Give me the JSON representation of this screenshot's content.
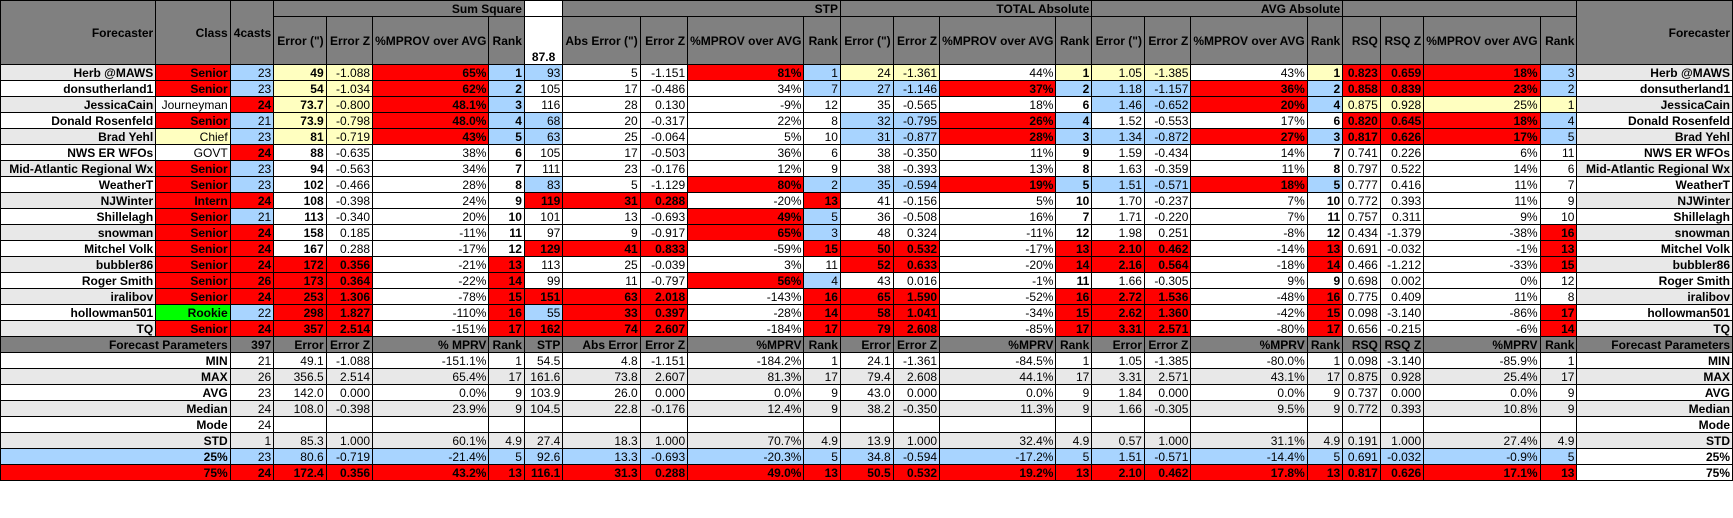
{
  "groups": {
    "sum_square": "Sum Square",
    "stp": "STP",
    "total_abs": "TOTAL Absolute",
    "avg_abs": "AVG Absolute"
  },
  "headers": {
    "forecaster": "Forecaster",
    "class": "Class",
    "casts": "4casts",
    "error_in": "Error (\")",
    "error_z": "Error Z",
    "improv": "%MPROV over AVG",
    "rank": "Rank",
    "stp_value": "87.8",
    "abs_error": "Abs Error (\")",
    "rsq": "RSQ",
    "rsq_z": "RSQ Z",
    "improv2": "%MPROV over AVG"
  },
  "rows": [
    {
      "name": "Herb @MAWS",
      "cls": "Senior",
      "n": "23",
      "ss": [
        "49",
        "-1.088",
        "65%",
        "1"
      ],
      "stp": [
        "93",
        "5",
        "-1.151",
        "81%",
        "1"
      ],
      "ta": [
        "24",
        "-1.361",
        "44%",
        "1"
      ],
      "aa": [
        "1.05",
        "-1.385",
        "43%",
        "1"
      ],
      "rsq": [
        "0.823",
        "0.659",
        "18%",
        "3"
      ]
    },
    {
      "name": "donsutherland1",
      "cls": "Senior",
      "n": "23",
      "ss": [
        "54",
        "-1.034",
        "62%",
        "2"
      ],
      "stp": [
        "105",
        "17",
        "-0.486",
        "34%",
        "7"
      ],
      "ta": [
        "27",
        "-1.146",
        "37%",
        "2"
      ],
      "aa": [
        "1.18",
        "-1.157",
        "36%",
        "2"
      ],
      "rsq": [
        "0.858",
        "0.839",
        "23%",
        "2"
      ]
    },
    {
      "name": "JessicaCain",
      "cls": "Journeyman",
      "n": "24",
      "ss": [
        "73.7",
        "-0.800",
        "48.1%",
        "3"
      ],
      "stp": [
        "116",
        "28",
        "0.130",
        "-9%",
        "12"
      ],
      "ta": [
        "35",
        "-0.565",
        "18%",
        "6"
      ],
      "aa": [
        "1.46",
        "-0.652",
        "20%",
        "4"
      ],
      "rsq": [
        "0.875",
        "0.928",
        "25%",
        "1"
      ]
    },
    {
      "name": "Donald Rosenfeld",
      "cls": "Senior",
      "n": "21",
      "ss": [
        "73.9",
        "-0.798",
        "48.0%",
        "4"
      ],
      "stp": [
        "68",
        "20",
        "-0.317",
        "22%",
        "8"
      ],
      "ta": [
        "32",
        "-0.795",
        "26%",
        "4"
      ],
      "aa": [
        "1.52",
        "-0.553",
        "17%",
        "6"
      ],
      "rsq": [
        "0.820",
        "0.645",
        "18%",
        "4"
      ]
    },
    {
      "name": "Brad Yehl",
      "cls": "Chief",
      "n": "23",
      "ss": [
        "81",
        "-0.719",
        "43%",
        "5"
      ],
      "stp": [
        "63",
        "25",
        "-0.064",
        "5%",
        "10"
      ],
      "ta": [
        "31",
        "-0.877",
        "28%",
        "3"
      ],
      "aa": [
        "1.34",
        "-0.872",
        "27%",
        "3"
      ],
      "rsq": [
        "0.817",
        "0.626",
        "17%",
        "5"
      ]
    },
    {
      "name": "NWS ER WFOs",
      "cls": "GOVT",
      "n": "24",
      "ss": [
        "88",
        "-0.635",
        "38%",
        "6"
      ],
      "stp": [
        "105",
        "17",
        "-0.503",
        "36%",
        "6"
      ],
      "ta": [
        "38",
        "-0.350",
        "11%",
        "9"
      ],
      "aa": [
        "1.59",
        "-0.434",
        "14%",
        "7"
      ],
      "rsq": [
        "0.741",
        "0.226",
        "6%",
        "11"
      ]
    },
    {
      "name": "Mid-Atlantic Regional Wx",
      "cls": "Senior",
      "n": "23",
      "ss": [
        "94",
        "-0.563",
        "34%",
        "7"
      ],
      "stp": [
        "111",
        "23",
        "-0.176",
        "12%",
        "9"
      ],
      "ta": [
        "38",
        "-0.393",
        "13%",
        "8"
      ],
      "aa": [
        "1.63",
        "-0.359",
        "11%",
        "8"
      ],
      "rsq": [
        "0.797",
        "0.522",
        "14%",
        "6"
      ]
    },
    {
      "name": "WeatherT",
      "cls": "Senior",
      "n": "23",
      "ss": [
        "102",
        "-0.466",
        "28%",
        "8"
      ],
      "stp": [
        "83",
        "5",
        "-1.129",
        "80%",
        "2"
      ],
      "ta": [
        "35",
        "-0.594",
        "19%",
        "5"
      ],
      "aa": [
        "1.51",
        "-0.571",
        "18%",
        "5"
      ],
      "rsq": [
        "0.777",
        "0.416",
        "11%",
        "7"
      ]
    },
    {
      "name": "NJWinter",
      "cls": "Intern",
      "n": "24",
      "ss": [
        "108",
        "-0.398",
        "24%",
        "9"
      ],
      "stp": [
        "119",
        "31",
        "0.288",
        "-20%",
        "13"
      ],
      "ta": [
        "41",
        "-0.156",
        "5%",
        "10"
      ],
      "aa": [
        "1.70",
        "-0.237",
        "7%",
        "10"
      ],
      "rsq": [
        "0.772",
        "0.393",
        "11%",
        "9"
      ]
    },
    {
      "name": "Shillelagh",
      "cls": "Senior",
      "n": "21",
      "ss": [
        "113",
        "-0.340",
        "20%",
        "10"
      ],
      "stp": [
        "101",
        "13",
        "-0.693",
        "49%",
        "5"
      ],
      "ta": [
        "36",
        "-0.508",
        "16%",
        "7"
      ],
      "aa": [
        "1.71",
        "-0.220",
        "7%",
        "11"
      ],
      "rsq": [
        "0.757",
        "0.311",
        "9%",
        "10"
      ]
    },
    {
      "name": "snowman",
      "cls": "Senior",
      "n": "24",
      "ss": [
        "158",
        "0.185",
        "-11%",
        "11"
      ],
      "stp": [
        "97",
        "9",
        "-0.917",
        "65%",
        "3"
      ],
      "ta": [
        "48",
        "0.324",
        "-11%",
        "12"
      ],
      "aa": [
        "1.98",
        "0.251",
        "-8%",
        "12"
      ],
      "rsq": [
        "0.434",
        "-1.379",
        "-38%",
        "16"
      ]
    },
    {
      "name": "Mitchel Volk",
      "cls": "Senior",
      "n": "24",
      "ss": [
        "167",
        "0.288",
        "-17%",
        "12"
      ],
      "stp": [
        "129",
        "41",
        "0.833",
        "-59%",
        "15"
      ],
      "ta": [
        "50",
        "0.532",
        "-17%",
        "13"
      ],
      "aa": [
        "2.10",
        "0.462",
        "-14%",
        "13"
      ],
      "rsq": [
        "0.691",
        "-0.032",
        "-1%",
        "13"
      ]
    },
    {
      "name": "bubbler86",
      "cls": "Senior",
      "n": "24",
      "ss": [
        "172",
        "0.356",
        "-21%",
        "13"
      ],
      "stp": [
        "113",
        "25",
        "-0.039",
        "3%",
        "11"
      ],
      "ta": [
        "52",
        "0.633",
        "-20%",
        "14"
      ],
      "aa": [
        "2.16",
        "0.564",
        "-18%",
        "14"
      ],
      "rsq": [
        "0.466",
        "-1.212",
        "-33%",
        "15"
      ]
    },
    {
      "name": "Roger Smith",
      "cls": "Senior",
      "n": "26",
      "ss": [
        "173",
        "0.364",
        "-22%",
        "14"
      ],
      "stp": [
        "99",
        "11",
        "-0.797",
        "56%",
        "4"
      ],
      "ta": [
        "43",
        "0.016",
        "-1%",
        "11"
      ],
      "aa": [
        "1.66",
        "-0.305",
        "9%",
        "9"
      ],
      "rsq": [
        "0.698",
        "0.002",
        "0%",
        "12"
      ]
    },
    {
      "name": "iralibov",
      "cls": "Senior",
      "n": "24",
      "ss": [
        "253",
        "1.306",
        "-78%",
        "15"
      ],
      "stp": [
        "151",
        "63",
        "2.018",
        "-143%",
        "16"
      ],
      "ta": [
        "65",
        "1.590",
        "-52%",
        "16"
      ],
      "aa": [
        "2.72",
        "1.536",
        "-48%",
        "16"
      ],
      "rsq": [
        "0.775",
        "0.409",
        "11%",
        "8"
      ]
    },
    {
      "name": "hollowman501",
      "cls": "Rookie",
      "n": "22",
      "ss": [
        "298",
        "1.827",
        "-110%",
        "16"
      ],
      "stp": [
        "55",
        "33",
        "0.397",
        "-28%",
        "14"
      ],
      "ta": [
        "58",
        "1.041",
        "-34%",
        "15"
      ],
      "aa": [
        "2.62",
        "1.360",
        "-42%",
        "15"
      ],
      "rsq": [
        "0.098",
        "-3.140",
        "-86%",
        "17"
      ]
    },
    {
      "name": "TQ",
      "cls": "Senior",
      "n": "24",
      "ss": [
        "357",
        "2.514",
        "-151%",
        "17"
      ],
      "stp": [
        "162",
        "74",
        "2.607",
        "-184%",
        "17"
      ],
      "ta": [
        "79",
        "2.608",
        "-85%",
        "17"
      ],
      "aa": [
        "3.31",
        "2.571",
        "-80%",
        "17"
      ],
      "rsq": [
        "0.656",
        "-0.215",
        "-6%",
        "14"
      ]
    }
  ],
  "params_header": {
    "label": "Forecast Parameters",
    "total": "397",
    "ss": [
      "Error",
      "Error Z",
      "% MPRV",
      "Rank"
    ],
    "stp": [
      "STP",
      "Abs Error",
      "Error Z",
      "%MPRV",
      "Rank"
    ],
    "ta": [
      "Error",
      "Error Z",
      "%MPRV",
      "Rank"
    ],
    "aa": [
      "Error",
      "Error Z",
      "%MPRV",
      "Rank"
    ],
    "rsq": [
      "RSQ",
      "RSQ Z",
      "%MPRV",
      "Rank"
    ]
  },
  "stats": [
    {
      "label": "MIN",
      "n": "21",
      "ss": [
        "49.1",
        "-1.088",
        "-151.1%",
        "1"
      ],
      "stp": [
        "54.5",
        "4.8",
        "-1.151",
        "-184.2%",
        "1"
      ],
      "ta": [
        "24.1",
        "-1.361",
        "-84.5%",
        "1"
      ],
      "aa": [
        "1.05",
        "-1.385",
        "-80.0%",
        "1"
      ],
      "rsq": [
        "0.098",
        "-3.140",
        "-85.9%",
        "1"
      ]
    },
    {
      "label": "MAX",
      "n": "26",
      "ss": [
        "356.5",
        "2.514",
        "65.4%",
        "17"
      ],
      "stp": [
        "161.6",
        "73.8",
        "2.607",
        "81.3%",
        "17"
      ],
      "ta": [
        "79.4",
        "2.608",
        "44.1%",
        "17"
      ],
      "aa": [
        "3.31",
        "2.571",
        "43.1%",
        "17"
      ],
      "rsq": [
        "0.875",
        "0.928",
        "25.4%",
        "17"
      ]
    },
    {
      "label": "AVG",
      "n": "23",
      "ss": [
        "142.0",
        "0.000",
        "0.0%",
        "9"
      ],
      "stp": [
        "103.9",
        "26.0",
        "0.000",
        "0.0%",
        "9"
      ],
      "ta": [
        "43.0",
        "0.000",
        "0.0%",
        "9"
      ],
      "aa": [
        "1.84",
        "0.000",
        "0.0%",
        "9"
      ],
      "rsq": [
        "0.737",
        "0.000",
        "0.0%",
        "9"
      ]
    },
    {
      "label": "Median",
      "n": "24",
      "ss": [
        "108.0",
        "-0.398",
        "23.9%",
        "9"
      ],
      "stp": [
        "104.5",
        "22.8",
        "-0.176",
        "12.4%",
        "9"
      ],
      "ta": [
        "38.2",
        "-0.350",
        "11.3%",
        "9"
      ],
      "aa": [
        "1.66",
        "-0.305",
        "9.5%",
        "9"
      ],
      "rsq": [
        "0.772",
        "0.393",
        "10.8%",
        "9"
      ]
    },
    {
      "label": "Mode",
      "n": "24",
      "ss": [
        "",
        "",
        "",
        ""
      ],
      "stp": [
        "",
        "",
        "",
        "",
        ""
      ],
      "ta": [
        "",
        "",
        "",
        ""
      ],
      "aa": [
        "",
        "",
        "",
        ""
      ],
      "rsq": [
        "",
        "",
        "",
        ""
      ]
    },
    {
      "label": "STD",
      "n": "1",
      "ss": [
        "85.3",
        "1.000",
        "60.1%",
        "4.9"
      ],
      "stp": [
        "27.4",
        "18.3",
        "1.000",
        "70.7%",
        "4.9"
      ],
      "ta": [
        "13.9",
        "1.000",
        "32.4%",
        "4.9"
      ],
      "aa": [
        "0.57",
        "1.000",
        "31.1%",
        "4.9"
      ],
      "rsq": [
        "0.191",
        "1.000",
        "27.4%",
        "4.9"
      ]
    },
    {
      "label": "25%",
      "n": "23",
      "ss": [
        "80.6",
        "-0.719",
        "-21.4%",
        "5"
      ],
      "stp": [
        "92.6",
        "13.3",
        "-0.693",
        "-20.3%",
        "5"
      ],
      "ta": [
        "34.8",
        "-0.594",
        "-17.2%",
        "5"
      ],
      "aa": [
        "1.51",
        "-0.571",
        "-14.4%",
        "5"
      ],
      "rsq": [
        "0.691",
        "-0.032",
        "-0.9%",
        "5"
      ]
    },
    {
      "label": "75%",
      "n": "24",
      "ss": [
        "172.4",
        "0.356",
        "43.2%",
        "13"
      ],
      "stp": [
        "116.1",
        "31.3",
        "0.288",
        "49.0%",
        "13"
      ],
      "ta": [
        "50.5",
        "0.532",
        "19.2%",
        "13"
      ],
      "aa": [
        "2.10",
        "0.462",
        "17.8%",
        "13"
      ],
      "rsq": [
        "0.817",
        "0.626",
        "17.1%",
        "13"
      ]
    }
  ],
  "colors": {
    "header": "#808080",
    "header_text": "#ffd700",
    "red": "#ff0000",
    "yellow_text": "#ffff00",
    "light_yellow": "#ffffc0",
    "light_blue": "#a8d4ff",
    "green": "#00ff00"
  }
}
